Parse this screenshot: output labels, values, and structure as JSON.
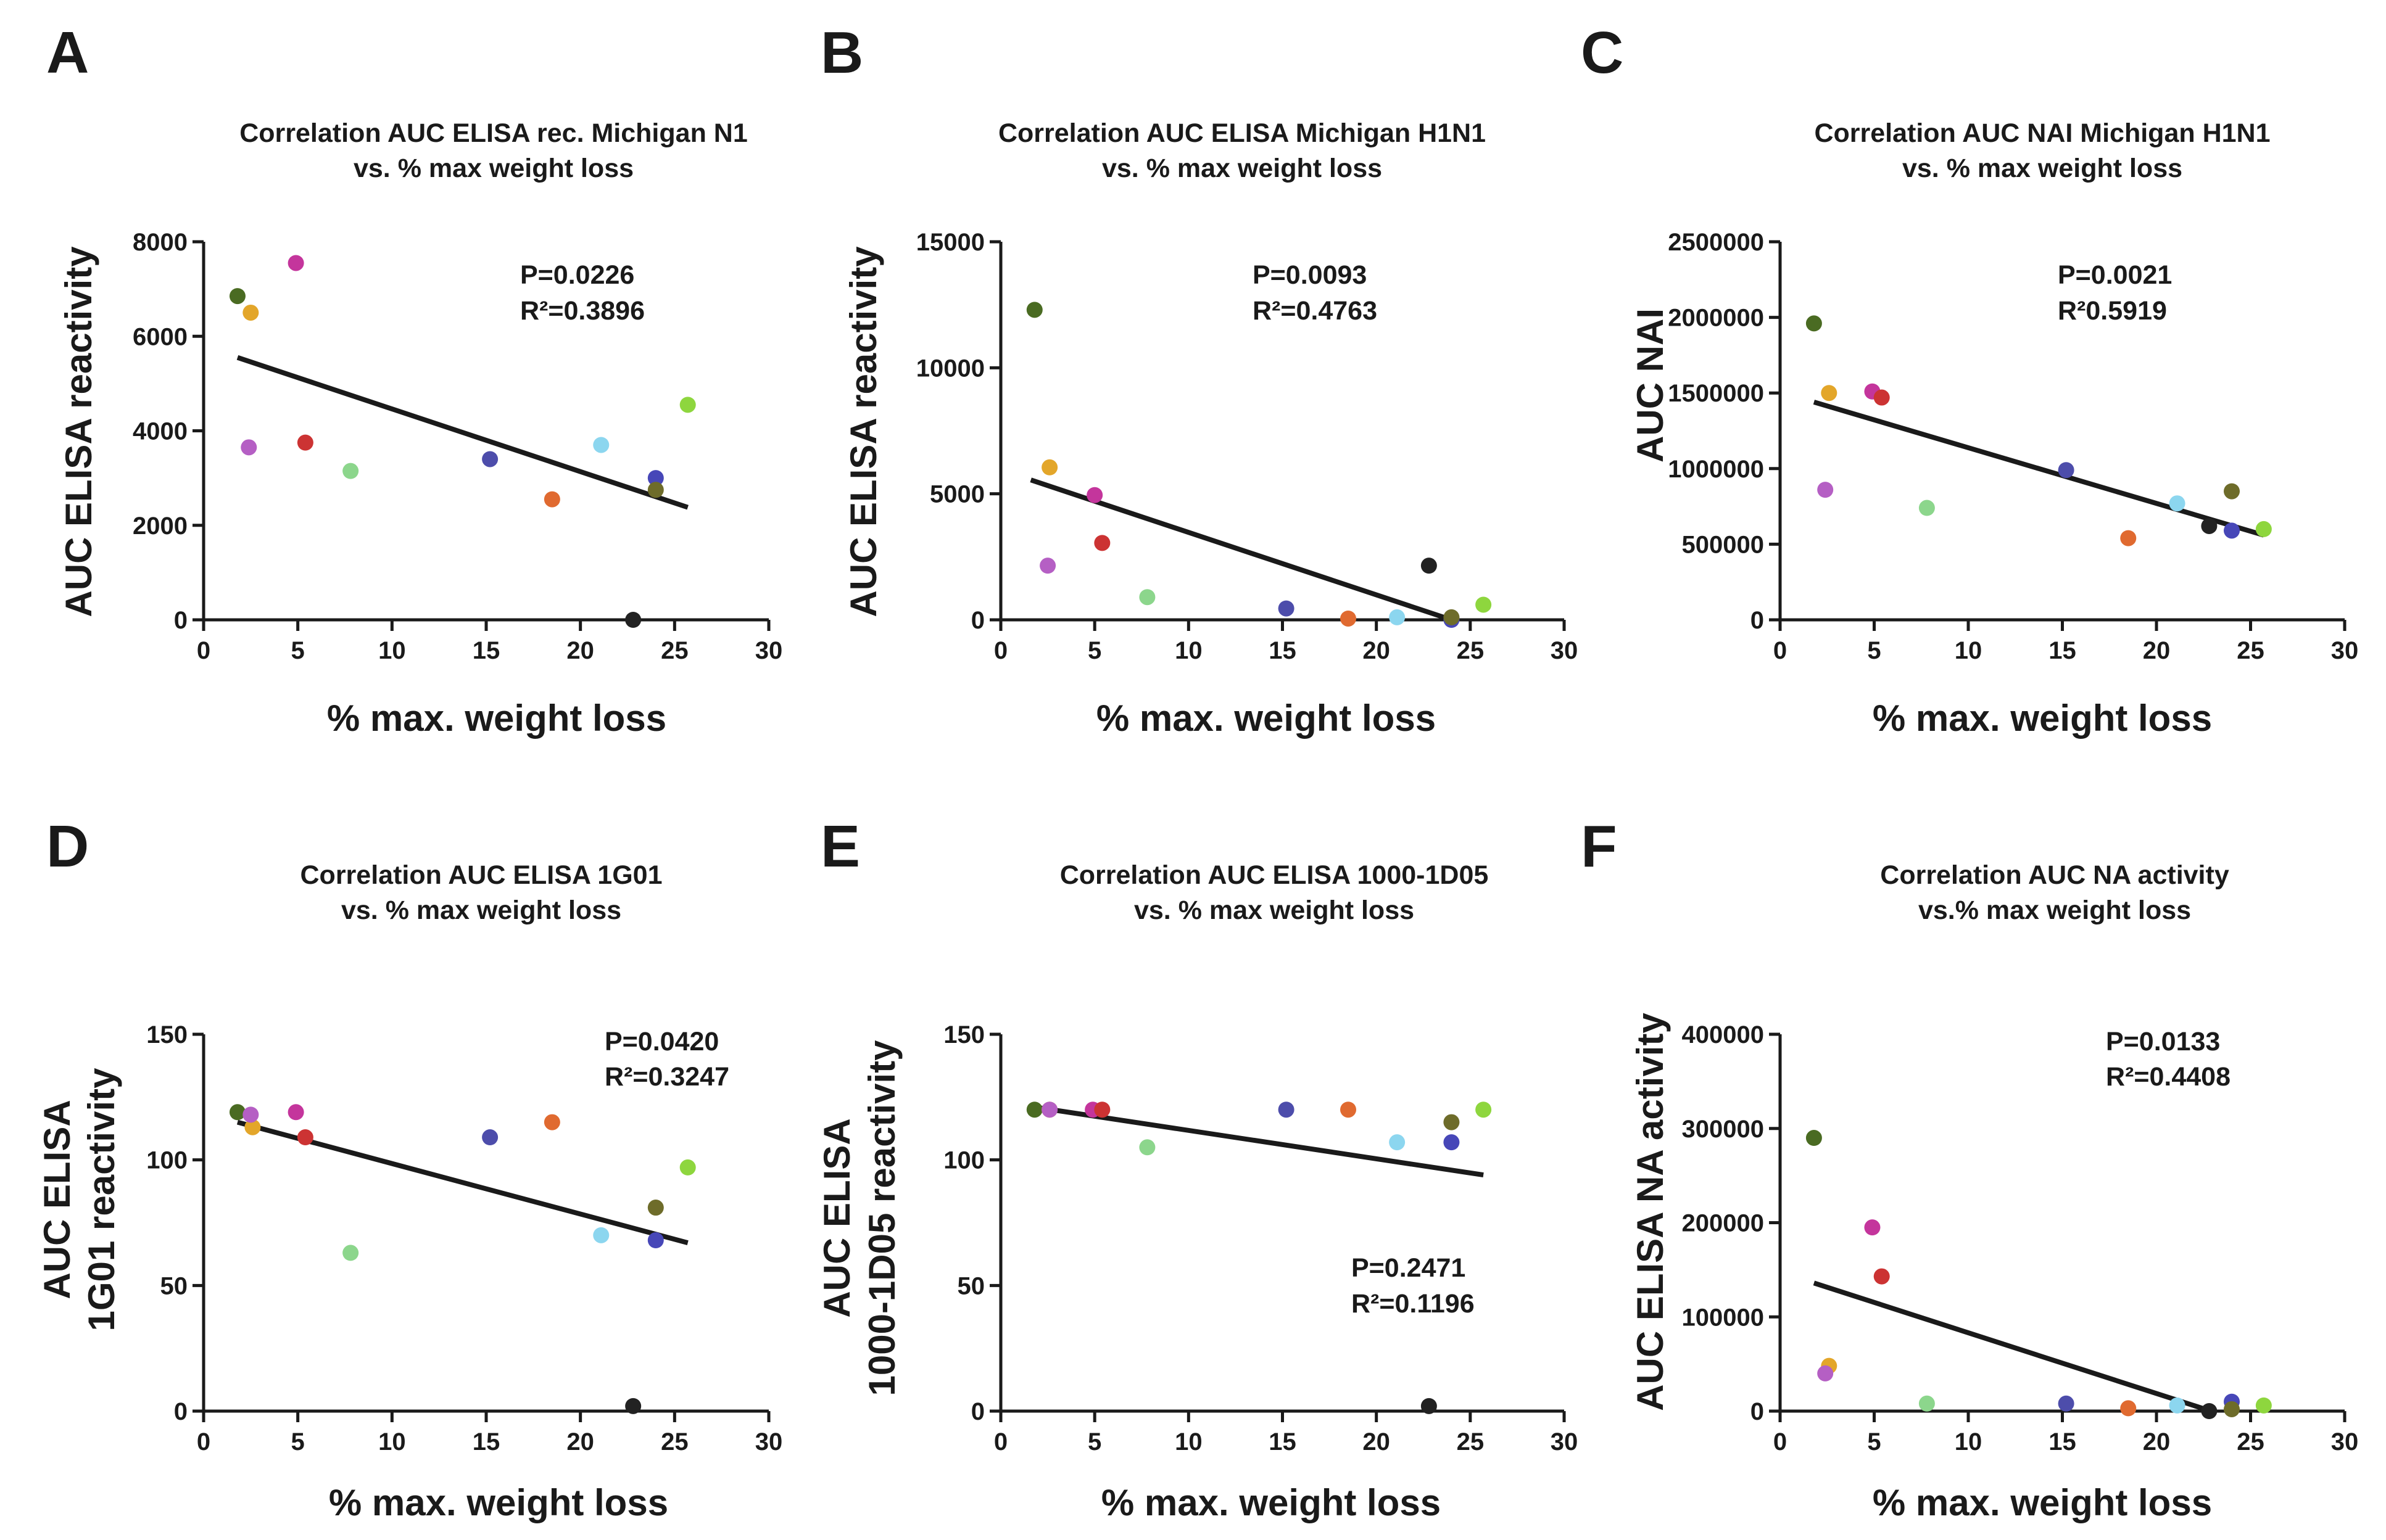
{
  "figure": {
    "point_colors": [
      "#4a6b22",
      "#e3a62a",
      "#b55fc4",
      "#c4359c",
      "#cc3333",
      "#8cd68c",
      "#4d4dab",
      "#e06a30",
      "#8cd6ef",
      "#222222",
      "#4747b8",
      "#6e6c2a",
      "#8ed63e"
    ],
    "line_color": "#1a1a1a"
  },
  "chart_data": [
    {
      "panel": "A",
      "type": "scatter",
      "title_lines": [
        "Correlation AUC ELISA rec. Michigan N1",
        "vs. % max weight loss"
      ],
      "xlabel": "% max. weight loss",
      "ylabel_lines": [
        "AUC ELISA reactivity"
      ],
      "xlim": [
        0,
        30
      ],
      "xticks": [
        0,
        5,
        10,
        15,
        20,
        25,
        30
      ],
      "xtick_labels": [
        "0",
        "5",
        "10",
        "15",
        "20",
        "25",
        "30"
      ],
      "ylim": [
        0,
        8000
      ],
      "yticks": [
        0,
        2000,
        4000,
        6000,
        8000
      ],
      "ytick_labels": [
        "0",
        "2000",
        "4000",
        "6000",
        "8000"
      ],
      "stats": [
        "P=0.0226",
        "R²=0.3896"
      ],
      "x": [
        1.8,
        2.5,
        2.4,
        4.9,
        5.4,
        7.8,
        15.2,
        18.5,
        21.1,
        22.8,
        24.0,
        24.0,
        25.7
      ],
      "y": [
        6850,
        6500,
        3650,
        7550,
        3750,
        3150,
        3400,
        2550,
        3700,
        0,
        3000,
        2750,
        4550
      ],
      "fit": {
        "x": [
          1.8,
          25.7
        ],
        "y": [
          5550,
          2380
        ]
      }
    },
    {
      "panel": "B",
      "type": "scatter",
      "title_lines": [
        "Correlation AUC ELISA Michigan H1N1",
        "vs. % max weight loss"
      ],
      "xlabel": "% max. weight loss",
      "ylabel_lines": [
        "AUC ELISA reactivity"
      ],
      "xlim": [
        0,
        30
      ],
      "xticks": [
        0,
        5,
        10,
        15,
        20,
        25,
        30
      ],
      "xtick_labels": [
        "0",
        "5",
        "10",
        "15",
        "20",
        "25",
        "30"
      ],
      "ylim": [
        0,
        15000
      ],
      "yticks": [
        0,
        5000,
        10000,
        15000
      ],
      "ytick_labels": [
        "0",
        "5000",
        "10000",
        "15000"
      ],
      "stats": [
        "P=0.0093",
        "R²=0.4763"
      ],
      "x": [
        1.8,
        2.6,
        2.5,
        5.0,
        5.4,
        7.8,
        15.2,
        18.5,
        21.1,
        22.8,
        24.0,
        24.0,
        25.7
      ],
      "y": [
        12300,
        6050,
        2150,
        4950,
        3050,
        900,
        450,
        50,
        100,
        2150,
        0,
        100,
        600
      ],
      "fit": {
        "x": [
          1.6,
          24.0
        ],
        "y": [
          5550,
          0
        ]
      }
    },
    {
      "panel": "C",
      "type": "scatter",
      "title_lines": [
        "Correlation AUC NAI Michigan H1N1",
        "vs. % max weight loss"
      ],
      "xlabel": "% max. weight loss",
      "ylabel_lines": [
        "AUC NAI"
      ],
      "xlim": [
        0,
        30
      ],
      "xticks": [
        0,
        5,
        10,
        15,
        20,
        25,
        30
      ],
      "xtick_labels": [
        "0",
        "5",
        "10",
        "15",
        "20",
        "25",
        "30"
      ],
      "ylim": [
        0,
        2500000
      ],
      "yticks": [
        0,
        500000,
        1000000,
        1500000,
        2000000,
        2500000
      ],
      "ytick_labels": [
        "0",
        "500000",
        "1000000",
        "1500000",
        "2000000",
        "2500000"
      ],
      "stats": [
        "P=0.0021",
        "R²0.5919"
      ],
      "x": [
        1.8,
        2.6,
        2.4,
        4.9,
        5.4,
        7.8,
        15.2,
        18.5,
        21.1,
        22.8,
        24.0,
        24.0,
        25.7
      ],
      "y": [
        1960000,
        1500000,
        860000,
        1510000,
        1470000,
        740000,
        990000,
        540000,
        770000,
        620000,
        590000,
        850000,
        600000
      ],
      "fit": {
        "x": [
          1.8,
          25.7
        ],
        "y": [
          1440000,
          560000
        ]
      }
    },
    {
      "panel": "D",
      "type": "scatter",
      "title_lines": [
        "Correlation AUC ELISA 1G01",
        "vs. % max weight loss"
      ],
      "xlabel": "% max. weight loss",
      "ylabel_lines": [
        "AUC ELISA",
        "1G01 reactivity"
      ],
      "xlim": [
        0,
        30
      ],
      "xticks": [
        0,
        5,
        10,
        15,
        20,
        25,
        30
      ],
      "xtick_labels": [
        "0",
        "5",
        "10",
        "15",
        "20",
        "25",
        "30"
      ],
      "ylim": [
        0,
        150
      ],
      "yticks": [
        0,
        50,
        100,
        150
      ],
      "ytick_labels": [
        "0",
        "50",
        "100",
        "150"
      ],
      "stats": [
        "P=0.0420",
        "R²=0.3247"
      ],
      "x": [
        1.8,
        2.6,
        2.5,
        4.9,
        5.4,
        7.8,
        15.2,
        18.5,
        21.1,
        22.8,
        24.0,
        24.0,
        25.7
      ],
      "y": [
        119,
        113,
        118,
        119,
        109,
        63,
        109,
        115,
        70,
        2,
        68,
        81,
        97
      ],
      "fit": {
        "x": [
          1.8,
          25.7
        ],
        "y": [
          115,
          67
        ]
      }
    },
    {
      "panel": "E",
      "type": "scatter",
      "title_lines": [
        "Correlation AUC ELISA 1000-1D05",
        "vs. % max weight loss"
      ],
      "xlabel": "% max. weight loss",
      "ylabel_lines": [
        "AUC ELISA",
        "1000-1D05 reactivity"
      ],
      "xlim": [
        0,
        30
      ],
      "xticks": [
        0,
        5,
        10,
        15,
        20,
        25,
        30
      ],
      "xtick_labels": [
        "0",
        "5",
        "10",
        "15",
        "20",
        "25",
        "30"
      ],
      "ylim": [
        0,
        150
      ],
      "yticks": [
        0,
        50,
        100,
        150
      ],
      "ytick_labels": [
        "0",
        "50",
        "100",
        "150"
      ],
      "stats": [
        "P=0.2471",
        "R²=0.1196"
      ],
      "x": [
        1.8,
        2.6,
        2.6,
        4.9,
        5.4,
        7.8,
        15.2,
        18.5,
        21.1,
        22.8,
        24.0,
        24.0,
        25.7
      ],
      "y": [
        120,
        120,
        120,
        120,
        120,
        105,
        120,
        120,
        107,
        2,
        107,
        115,
        120
      ],
      "fit": {
        "x": [
          1.8,
          25.7
        ],
        "y": [
          121,
          94
        ]
      }
    },
    {
      "panel": "F",
      "type": "scatter",
      "title_lines": [
        "Correlation AUC NA activity",
        "vs.% max weight loss"
      ],
      "xlabel": "% max. weight loss",
      "ylabel_lines": [
        "AUC ELISA NA activity"
      ],
      "xlim": [
        0,
        30
      ],
      "xticks": [
        0,
        5,
        10,
        15,
        20,
        25,
        30
      ],
      "xtick_labels": [
        "0",
        "5",
        "10",
        "15",
        "20",
        "25",
        "30"
      ],
      "ylim": [
        0,
        400000
      ],
      "yticks": [
        0,
        100000,
        200000,
        300000,
        400000
      ],
      "ytick_labels": [
        "0",
        "100000",
        "200000",
        "300000",
        "400000"
      ],
      "stats": [
        "P=0.0133",
        "R²=0.4408"
      ],
      "x": [
        1.8,
        2.6,
        2.4,
        4.9,
        5.4,
        7.8,
        15.2,
        18.5,
        21.1,
        22.8,
        24.0,
        24.0,
        25.7
      ],
      "y": [
        290000,
        48000,
        40000,
        195000,
        143000,
        8000,
        8000,
        3000,
        6000,
        0,
        10000,
        2000,
        6000
      ],
      "fit": {
        "x": [
          1.8,
          22.9
        ],
        "y": [
          136000,
          0
        ]
      }
    }
  ]
}
